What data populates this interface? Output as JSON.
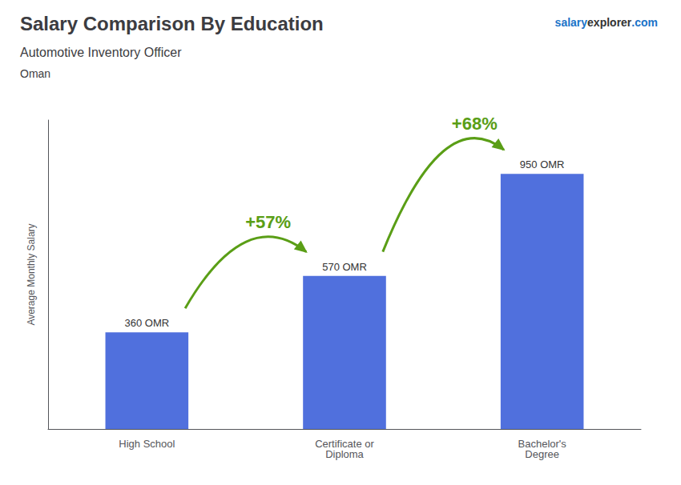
{
  "chart_data": {
    "type": "bar",
    "title": "Salary Comparison By Education",
    "subtitle": "Automotive Inventory Officer",
    "country": "Oman",
    "watermark": [
      "salary",
      "explorer",
      ".com"
    ],
    "ylabel": "Average Monthly Salary",
    "categories": [
      "High School",
      "Certificate or\nDiploma",
      "Bachelor's\nDegree"
    ],
    "values": [
      360,
      570,
      950
    ],
    "value_labels": [
      "360 OMR",
      "570 OMR",
      "950 OMR"
    ],
    "data_labels": true,
    "annotations": [
      {
        "text": "+57%",
        "from": "High School",
        "to": "Certificate or\nDiploma"
      },
      {
        "text": "+68%",
        "from": "Certificate or\nDiploma",
        "to": "Bachelor's\nDegree"
      }
    ],
    "ylim": [
      0,
      1150
    ],
    "yticks": [],
    "tick_labels": "x",
    "grid": false
  }
}
